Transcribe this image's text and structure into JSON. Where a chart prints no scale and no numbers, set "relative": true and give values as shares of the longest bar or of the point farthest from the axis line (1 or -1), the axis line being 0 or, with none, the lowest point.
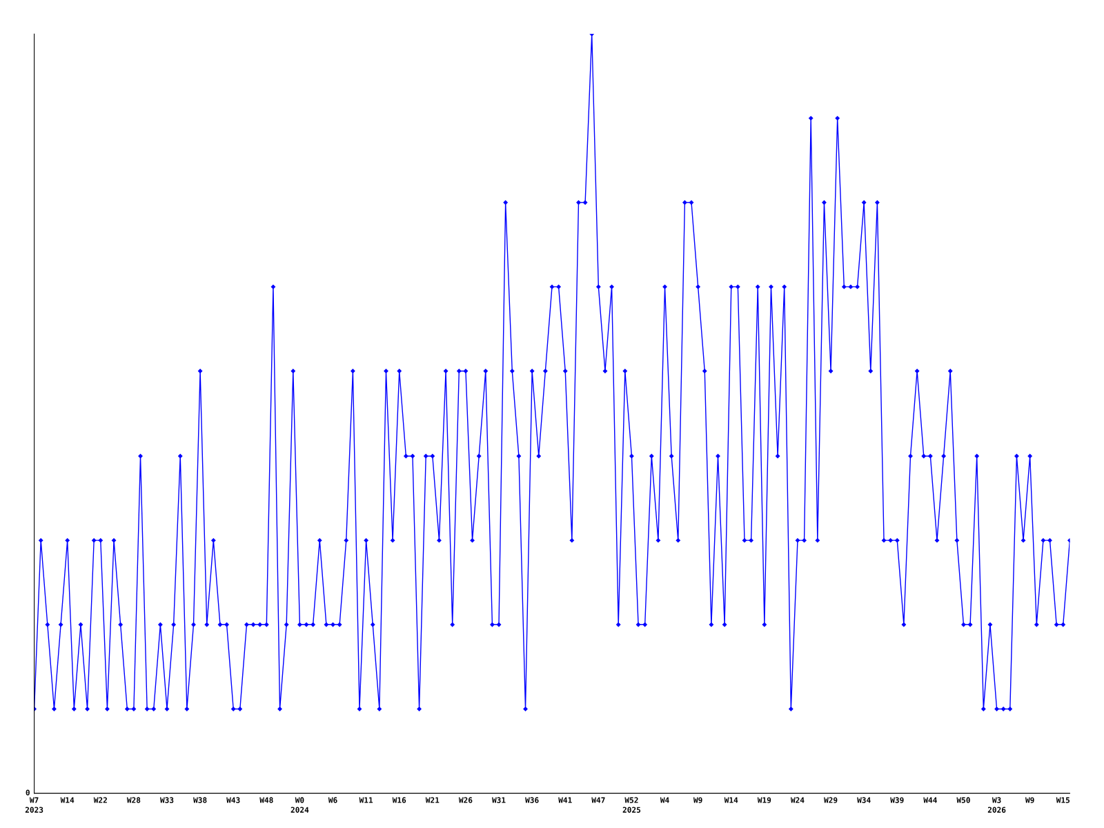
{
  "chart_data": {
    "type": "line",
    "relative": true,
    "marker": "diamond",
    "line_style": "solid",
    "annotations": [
      "0"
    ],
    "categories": [
      "W7\n2023",
      null,
      null,
      null,
      null,
      "W14",
      null,
      null,
      null,
      null,
      "W22",
      null,
      null,
      null,
      null,
      "W28",
      null,
      null,
      null,
      null,
      "W33",
      null,
      null,
      null,
      null,
      "W38",
      null,
      null,
      null,
      null,
      "W43",
      null,
      null,
      null,
      null,
      "W48",
      null,
      null,
      null,
      null,
      "W0\n2024",
      null,
      null,
      null,
      null,
      "W6",
      null,
      null,
      null,
      null,
      "W11",
      null,
      null,
      null,
      null,
      "W16",
      null,
      null,
      null,
      null,
      "W21",
      null,
      null,
      null,
      null,
      "W26",
      null,
      null,
      null,
      null,
      "W31",
      null,
      null,
      null,
      null,
      "W36",
      null,
      null,
      null,
      null,
      "W41",
      null,
      null,
      null,
      null,
      "W47",
      null,
      null,
      null,
      null,
      "W52\n2025",
      null,
      null,
      null,
      null,
      "W4",
      null,
      null,
      null,
      null,
      "W9",
      null,
      null,
      null,
      null,
      "W14",
      null,
      null,
      null,
      null,
      "W19",
      null,
      null,
      null,
      null,
      "W24",
      null,
      null,
      null,
      null,
      "W29",
      null,
      null,
      null,
      null,
      "W34",
      null,
      null,
      null,
      null,
      "W39",
      null,
      null,
      null,
      null,
      "W44",
      null,
      null,
      null,
      null,
      "W50",
      null,
      null,
      null,
      null,
      "W3\n2026",
      null,
      null,
      null,
      null,
      "W9",
      null,
      null,
      null,
      null,
      "W15",
      null
    ],
    "series": [
      {
        "color": "#0000ff",
        "values": [
          0.111,
          0.333,
          0.222,
          0.111,
          0.222,
          0.333,
          0.111,
          0.222,
          0.111,
          0.333,
          0.333,
          0.111,
          0.333,
          0.222,
          0.111,
          0.111,
          0.444,
          0.111,
          0.111,
          0.222,
          0.111,
          0.222,
          0.444,
          0.111,
          0.222,
          0.556,
          0.222,
          0.333,
          0.222,
          0.222,
          0.111,
          0.111,
          0.222,
          0.222,
          0.222,
          0.222,
          0.667,
          0.111,
          0.222,
          0.556,
          0.222,
          0.222,
          0.222,
          0.333,
          0.222,
          0.222,
          0.222,
          0.333,
          0.556,
          0.111,
          0.333,
          0.222,
          0.111,
          0.556,
          0.333,
          0.556,
          0.444,
          0.444,
          0.111,
          0.444,
          0.444,
          0.333,
          0.556,
          0.222,
          0.556,
          0.556,
          0.333,
          0.444,
          0.556,
          0.222,
          0.222,
          0.778,
          0.556,
          0.444,
          0.111,
          0.556,
          0.444,
          0.556,
          0.667,
          0.667,
          0.556,
          0.333,
          0.778,
          0.778,
          1,
          0.667,
          0.556,
          0.667,
          0.222,
          0.556,
          0.444,
          0.222,
          0.222,
          0.444,
          0.333,
          0.667,
          0.444,
          0.333,
          0.778,
          0.778,
          0.667,
          0.556,
          0.222,
          0.444,
          0.222,
          0.667,
          0.667,
          0.333,
          0.333,
          0.667,
          0.222,
          0.667,
          0.444,
          0.667,
          0.111,
          0.333,
          0.333,
          0.889,
          0.333,
          0.778,
          0.556,
          0.889,
          0.667,
          0.667,
          0.667,
          0.778,
          0.556,
          0.778,
          0.333,
          0.333,
          0.333,
          0.222,
          0.444,
          0.556,
          0.444,
          0.444,
          0.333,
          0.444,
          0.556,
          0.333,
          0.222,
          0.222,
          0.444,
          0.111,
          0.222,
          0.111,
          0.111,
          0.111,
          0.444,
          0.333,
          0.444,
          0.222,
          0.333,
          0.333,
          0.222,
          0.222,
          0.333
        ]
      }
    ]
  }
}
